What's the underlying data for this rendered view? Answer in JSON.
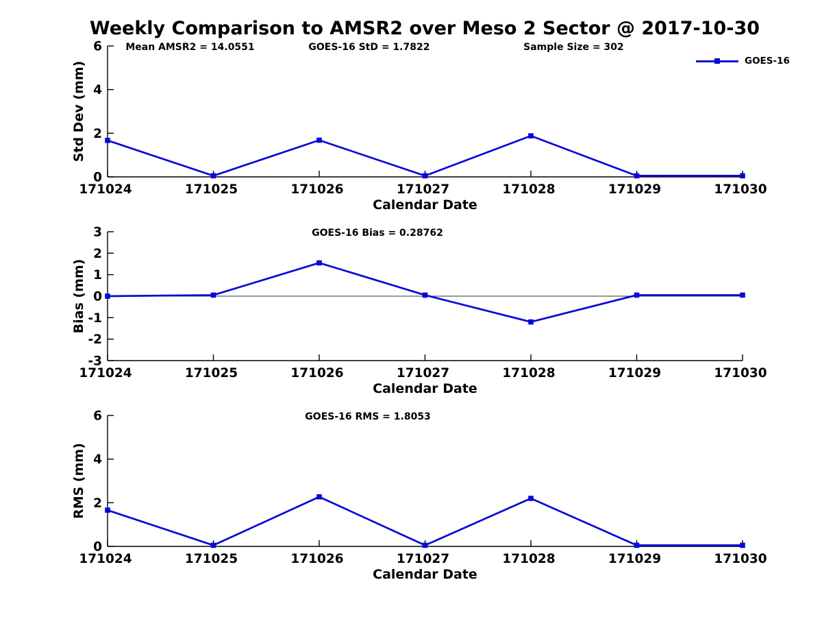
{
  "title": "Weekly Comparison to AMSR2 over Meso 2 Sector @ 2017-10-30",
  "legend": {
    "label": "GOES-16",
    "position": "top-right"
  },
  "colors": {
    "series": "#0808d8",
    "axis": "#000000",
    "text": "#000000",
    "zero_line": "#333333"
  },
  "chart_data": [
    {
      "type": "line",
      "name": "std-dev-subplot",
      "xlabel": "Calendar Date",
      "ylabel": "Std Dev (mm)",
      "categories": [
        "171024",
        "171025",
        "171026",
        "171027",
        "171028",
        "171029",
        "171030"
      ],
      "series": [
        {
          "name": "GOES-16",
          "values": [
            1.67,
            0.05,
            1.68,
            0.05,
            1.88,
            0.05,
            0.05
          ]
        }
      ],
      "ylim": [
        0,
        6
      ],
      "yticks": [
        0,
        2,
        4,
        6
      ],
      "grid": false,
      "zero_line": false,
      "annotations": [
        {
          "text": "Mean AMSR2 = 14.0551",
          "xfrac": 0.13
        },
        {
          "text": "GOES-16 StD = 1.7822",
          "xfrac": 0.412
        },
        {
          "text": "Sample Size = 302",
          "xfrac": 0.734
        }
      ]
    },
    {
      "type": "line",
      "name": "bias-subplot",
      "xlabel": "Calendar Date",
      "ylabel": "Bias (mm)",
      "categories": [
        "171024",
        "171025",
        "171026",
        "171027",
        "171028",
        "171029",
        "171030"
      ],
      "series": [
        {
          "name": "GOES-16",
          "values": [
            0.0,
            0.05,
            1.55,
            0.05,
            -1.2,
            0.05,
            0.05
          ]
        }
      ],
      "ylim": [
        -3,
        3
      ],
      "yticks": [
        -3,
        -2,
        -1,
        0,
        1,
        2,
        3
      ],
      "grid": false,
      "zero_line": true,
      "annotations": [
        {
          "text": "GOES-16 Bias  = 0.28762",
          "xfrac": 0.425
        }
      ]
    },
    {
      "type": "line",
      "name": "rms-subplot",
      "xlabel": "Calendar Date",
      "ylabel": "RMS (mm)",
      "categories": [
        "171024",
        "171025",
        "171026",
        "171027",
        "171028",
        "171029",
        "171030"
      ],
      "series": [
        {
          "name": "GOES-16",
          "values": [
            1.66,
            0.05,
            2.27,
            0.05,
            2.2,
            0.05,
            0.05
          ]
        }
      ],
      "ylim": [
        0,
        6
      ],
      "yticks": [
        0,
        2,
        4,
        6
      ],
      "grid": false,
      "zero_line": false,
      "annotations": [
        {
          "text": "GOES-16 RMS = 1.8053",
          "xfrac": 0.41
        }
      ]
    }
  ]
}
